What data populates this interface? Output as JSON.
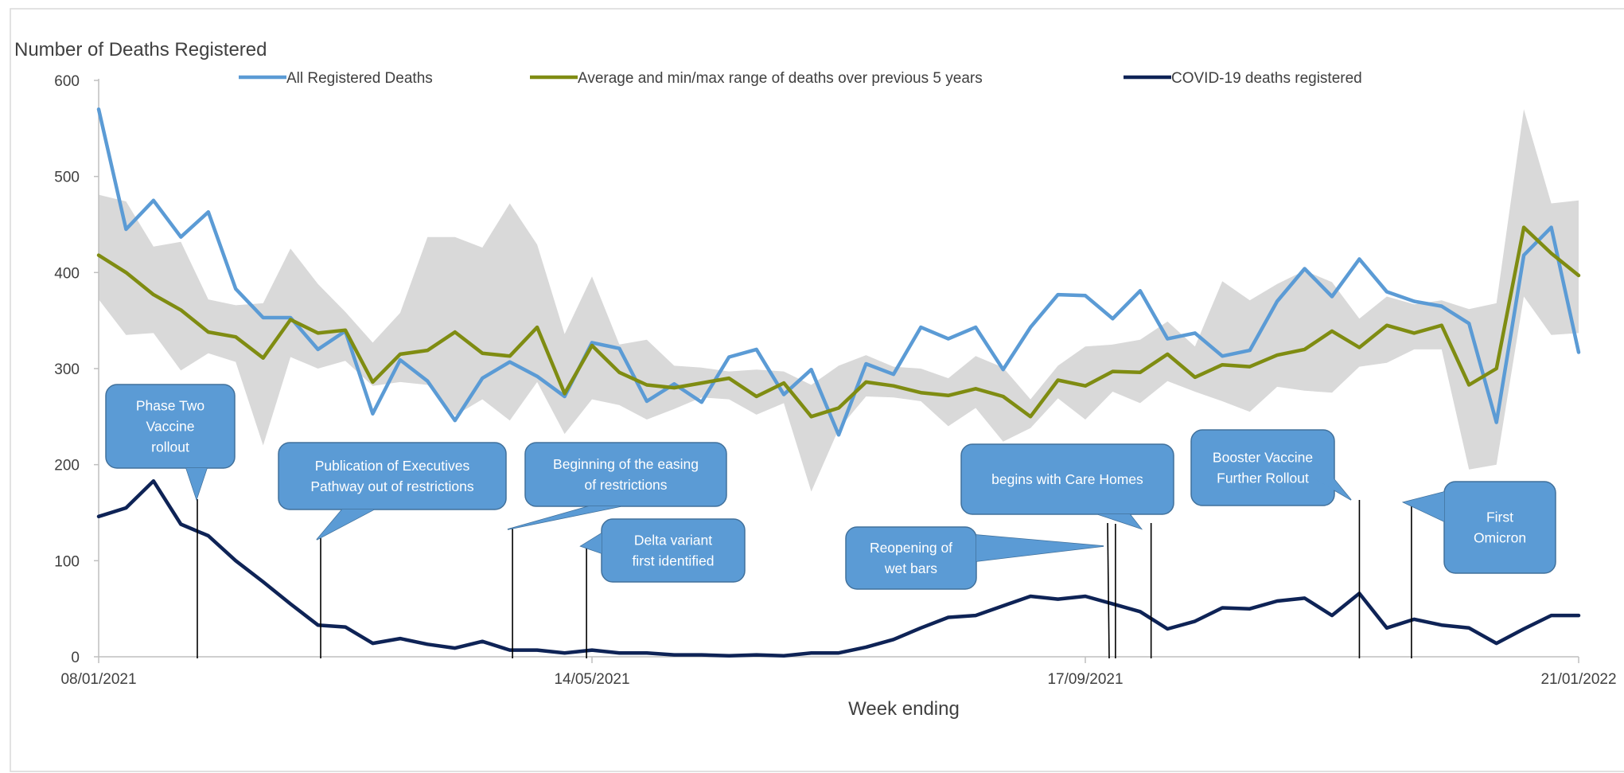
{
  "chart_data": {
    "type": "line",
    "ylabel": "Number of Deaths Registered",
    "xlabel": "Week ending",
    "ylim": [
      0,
      600
    ],
    "yticks": [
      0,
      100,
      200,
      300,
      400,
      500,
      600
    ],
    "x_start": "08/01/2021",
    "x_tick_labels": [
      {
        "label": "08/01/2021",
        "week": 0
      },
      {
        "label": "14/05/2021",
        "week": 18
      },
      {
        "label": "17/09/2021",
        "week": 36
      },
      {
        "label": "21/01/2022",
        "week": 54
      }
    ],
    "grid": false,
    "legend_position": "top",
    "series": [
      {
        "name": "All Registered Deaths",
        "color": "#5B9BD5",
        "values": [
          570,
          445,
          475,
          437,
          463,
          383,
          353,
          353,
          320,
          339,
          253,
          309,
          287,
          246,
          290,
          307,
          292,
          271,
          327,
          321,
          266,
          284,
          265,
          312,
          320,
          273,
          299,
          231,
          305,
          294,
          343,
          331,
          343,
          299,
          343,
          377,
          376,
          352,
          381,
          331,
          337,
          313,
          319,
          370,
          404,
          375,
          414,
          380,
          370,
          365,
          347,
          244,
          418,
          447,
          317
        ]
      },
      {
        "name": "Average and min/max range of deaths over previous 5 years",
        "color": "#7F8C12",
        "values": [
          418,
          400,
          377,
          361,
          338,
          333,
          311,
          351,
          337,
          340,
          286,
          315,
          319,
          338,
          316,
          313,
          343,
          274,
          324,
          296,
          283,
          280,
          285,
          290,
          271,
          285,
          250,
          259,
          286,
          282,
          275,
          272,
          279,
          271,
          250,
          288,
          282,
          297,
          296,
          315,
          291,
          304,
          302,
          314,
          320,
          339,
          322,
          345,
          337,
          345,
          283,
          300,
          447,
          420,
          397
        ]
      },
      {
        "name": "COVID-19 deaths registered",
        "color": "#0E2356",
        "values": [
          146,
          155,
          183,
          138,
          126,
          100,
          78,
          55,
          33,
          31,
          14,
          19,
          13,
          9,
          16,
          7,
          7,
          4,
          7,
          4,
          4,
          2,
          2,
          1,
          2,
          1,
          4,
          4,
          10,
          18,
          30,
          41,
          43,
          53,
          63,
          60,
          63,
          55,
          47,
          29,
          37,
          51,
          50,
          58,
          61,
          43,
          66,
          30,
          39,
          33,
          30,
          14,
          29,
          43,
          43
        ]
      }
    ],
    "range_band": {
      "name": "Average and min/max range of deaths over previous 5 years",
      "color": "#D9D9D9",
      "max": [
        481,
        474,
        427,
        432,
        372,
        366,
        368,
        425,
        388,
        359,
        327,
        358,
        437,
        437,
        426,
        472,
        429,
        336,
        396,
        325,
        330,
        303,
        301,
        297,
        299,
        297,
        283,
        303,
        314,
        302,
        300,
        290,
        313,
        301,
        268,
        303,
        323,
        325,
        330,
        349,
        323,
        391,
        371,
        388,
        402,
        390,
        352,
        375,
        367,
        371,
        362,
        368,
        570,
        472,
        475
      ],
      "min": [
        372,
        335,
        337,
        298,
        316,
        307,
        220,
        312,
        300,
        308,
        282,
        286,
        283,
        251,
        268,
        246,
        286,
        232,
        268,
        262,
        247,
        258,
        270,
        268,
        252,
        264,
        172,
        237,
        271,
        270,
        266,
        240,
        259,
        224,
        238,
        269,
        247,
        276,
        264,
        287,
        276,
        266,
        255,
        281,
        277,
        275,
        302,
        306,
        320,
        320,
        195,
        200,
        375,
        335,
        337
      ]
    },
    "annotations": [
      {
        "lines": [
          "Phase Two",
          "Vaccine",
          "rollout"
        ],
        "week": 3.6
      },
      {
        "lines": [
          "Publication  of Executives",
          "Pathway out of restrictions"
        ],
        "week": 8.1
      },
      {
        "lines": [
          "Beginning of the easing",
          "of restrictions"
        ],
        "week": 15.1
      },
      {
        "lines": [
          "Delta variant",
          "first identified"
        ],
        "week": 17.8
      },
      {
        "lines": [
          "Reopening  of",
          "wet bars"
        ],
        "week": 37.1
      },
      {
        "lines": [
          "begins with Care Homes"
        ],
        "week": 38.4
      },
      {
        "lines": [
          "Booster Vaccine",
          "Further Rollout"
        ],
        "week": 46.0
      },
      {
        "lines": [
          "First",
          "Omicron"
        ],
        "week": 47.9
      }
    ]
  }
}
